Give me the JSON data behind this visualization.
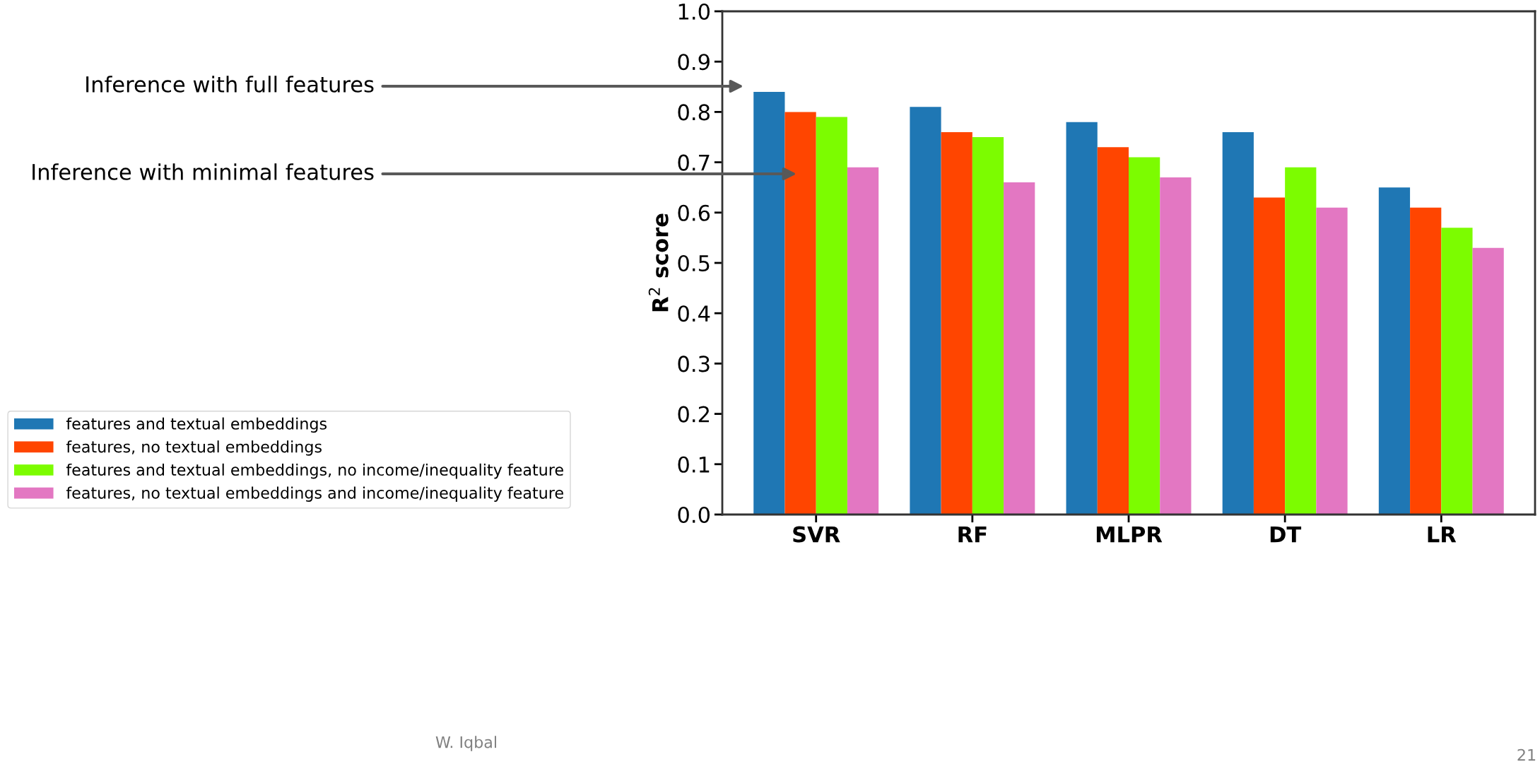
{
  "chart_data": {
    "type": "bar",
    "ylabel": "R$^{2}$ score",
    "categories": [
      "SVR",
      "RF",
      "MLPR",
      "DT",
      "LR"
    ],
    "series": [
      {
        "name": "features and textual embeddings",
        "color": "#1f77b4",
        "values": [
          0.84,
          0.81,
          0.78,
          0.76,
          0.65
        ]
      },
      {
        "name": "features, no textual embeddings",
        "color": "#ff4500",
        "values": [
          0.8,
          0.76,
          0.73,
          0.63,
          0.61
        ]
      },
      {
        "name": "features and textual embeddings, no income/inequality feature",
        "color": "#7cfc00",
        "values": [
          0.79,
          0.75,
          0.71,
          0.69,
          0.57
        ]
      },
      {
        "name": "features, no textual embeddings and income/inequality feature",
        "color": "#e377c2",
        "values": [
          0.69,
          0.66,
          0.67,
          0.61,
          0.53
        ]
      }
    ],
    "ylim": [
      0,
      1.0
    ],
    "yticks": [
      {
        "value": 0,
        "label": "0.0"
      },
      0.1,
      0.2,
      0.3,
      0.4,
      0.5,
      0.6,
      0.7,
      0.8,
      0.9,
      {
        "value": 1,
        "label": "1.0"
      }
    ],
    "grid": false,
    "legend": "bottom left",
    "annotations": [
      "Inference with full features",
      "Inference with minimal features",
      "W. Iqbal",
      "21"
    ]
  }
}
